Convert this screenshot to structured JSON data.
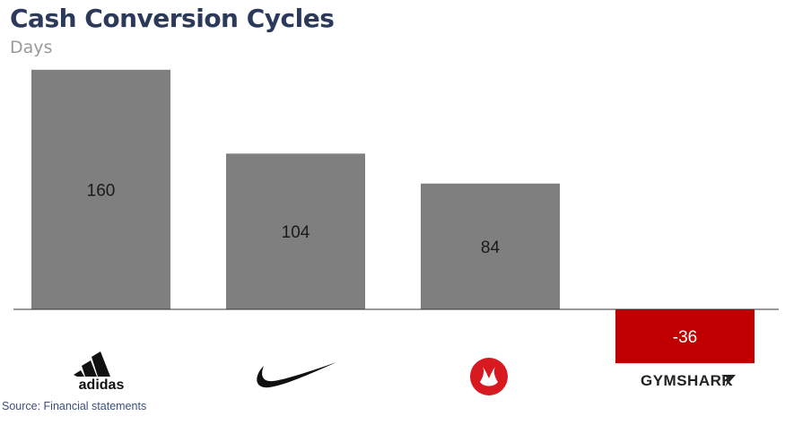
{
  "chart_data": {
    "type": "bar",
    "title": "Cash Conversion Cycles",
    "subtitle": "Days",
    "categories": [
      "adidas",
      "Nike",
      "lululemon",
      "GYMSHARK"
    ],
    "values": [
      160,
      104,
      84,
      -36
    ],
    "data_labels": [
      "160",
      "104",
      "84",
      "-36"
    ],
    "ylim": [
      -36,
      160
    ],
    "grid": false,
    "legend": "none",
    "colors": {
      "positive": "#7f7f7f",
      "negative": "#c00000",
      "baseline": "#333333"
    }
  },
  "logos": {
    "adidas": {
      "text": "adidas",
      "icon": "adidas-logo-icon"
    },
    "nike": {
      "icon": "nike-swoosh-icon"
    },
    "lululemon": {
      "icon": "lululemon-logo-icon",
      "color": "#d71920"
    },
    "gymshark": {
      "text": "GYMSHARK",
      "icon": "gymshark-logo-icon"
    }
  },
  "source": "Source: Financial statements"
}
